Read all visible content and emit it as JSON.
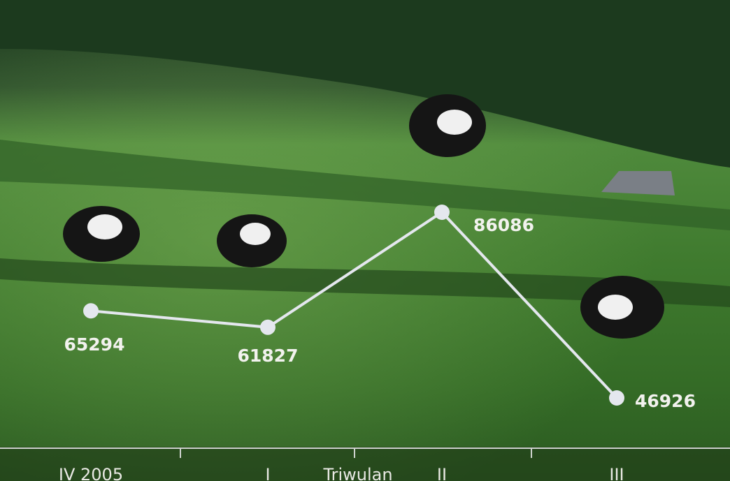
{
  "chart_data": {
    "type": "line",
    "x_label": "Triwulan",
    "categories": [
      "IV 2005",
      "I",
      "II",
      "III"
    ],
    "series": [
      {
        "color": "#e4e7ee",
        "values": [
          65294,
          61827,
          86086,
          46926
        ]
      }
    ]
  }
}
